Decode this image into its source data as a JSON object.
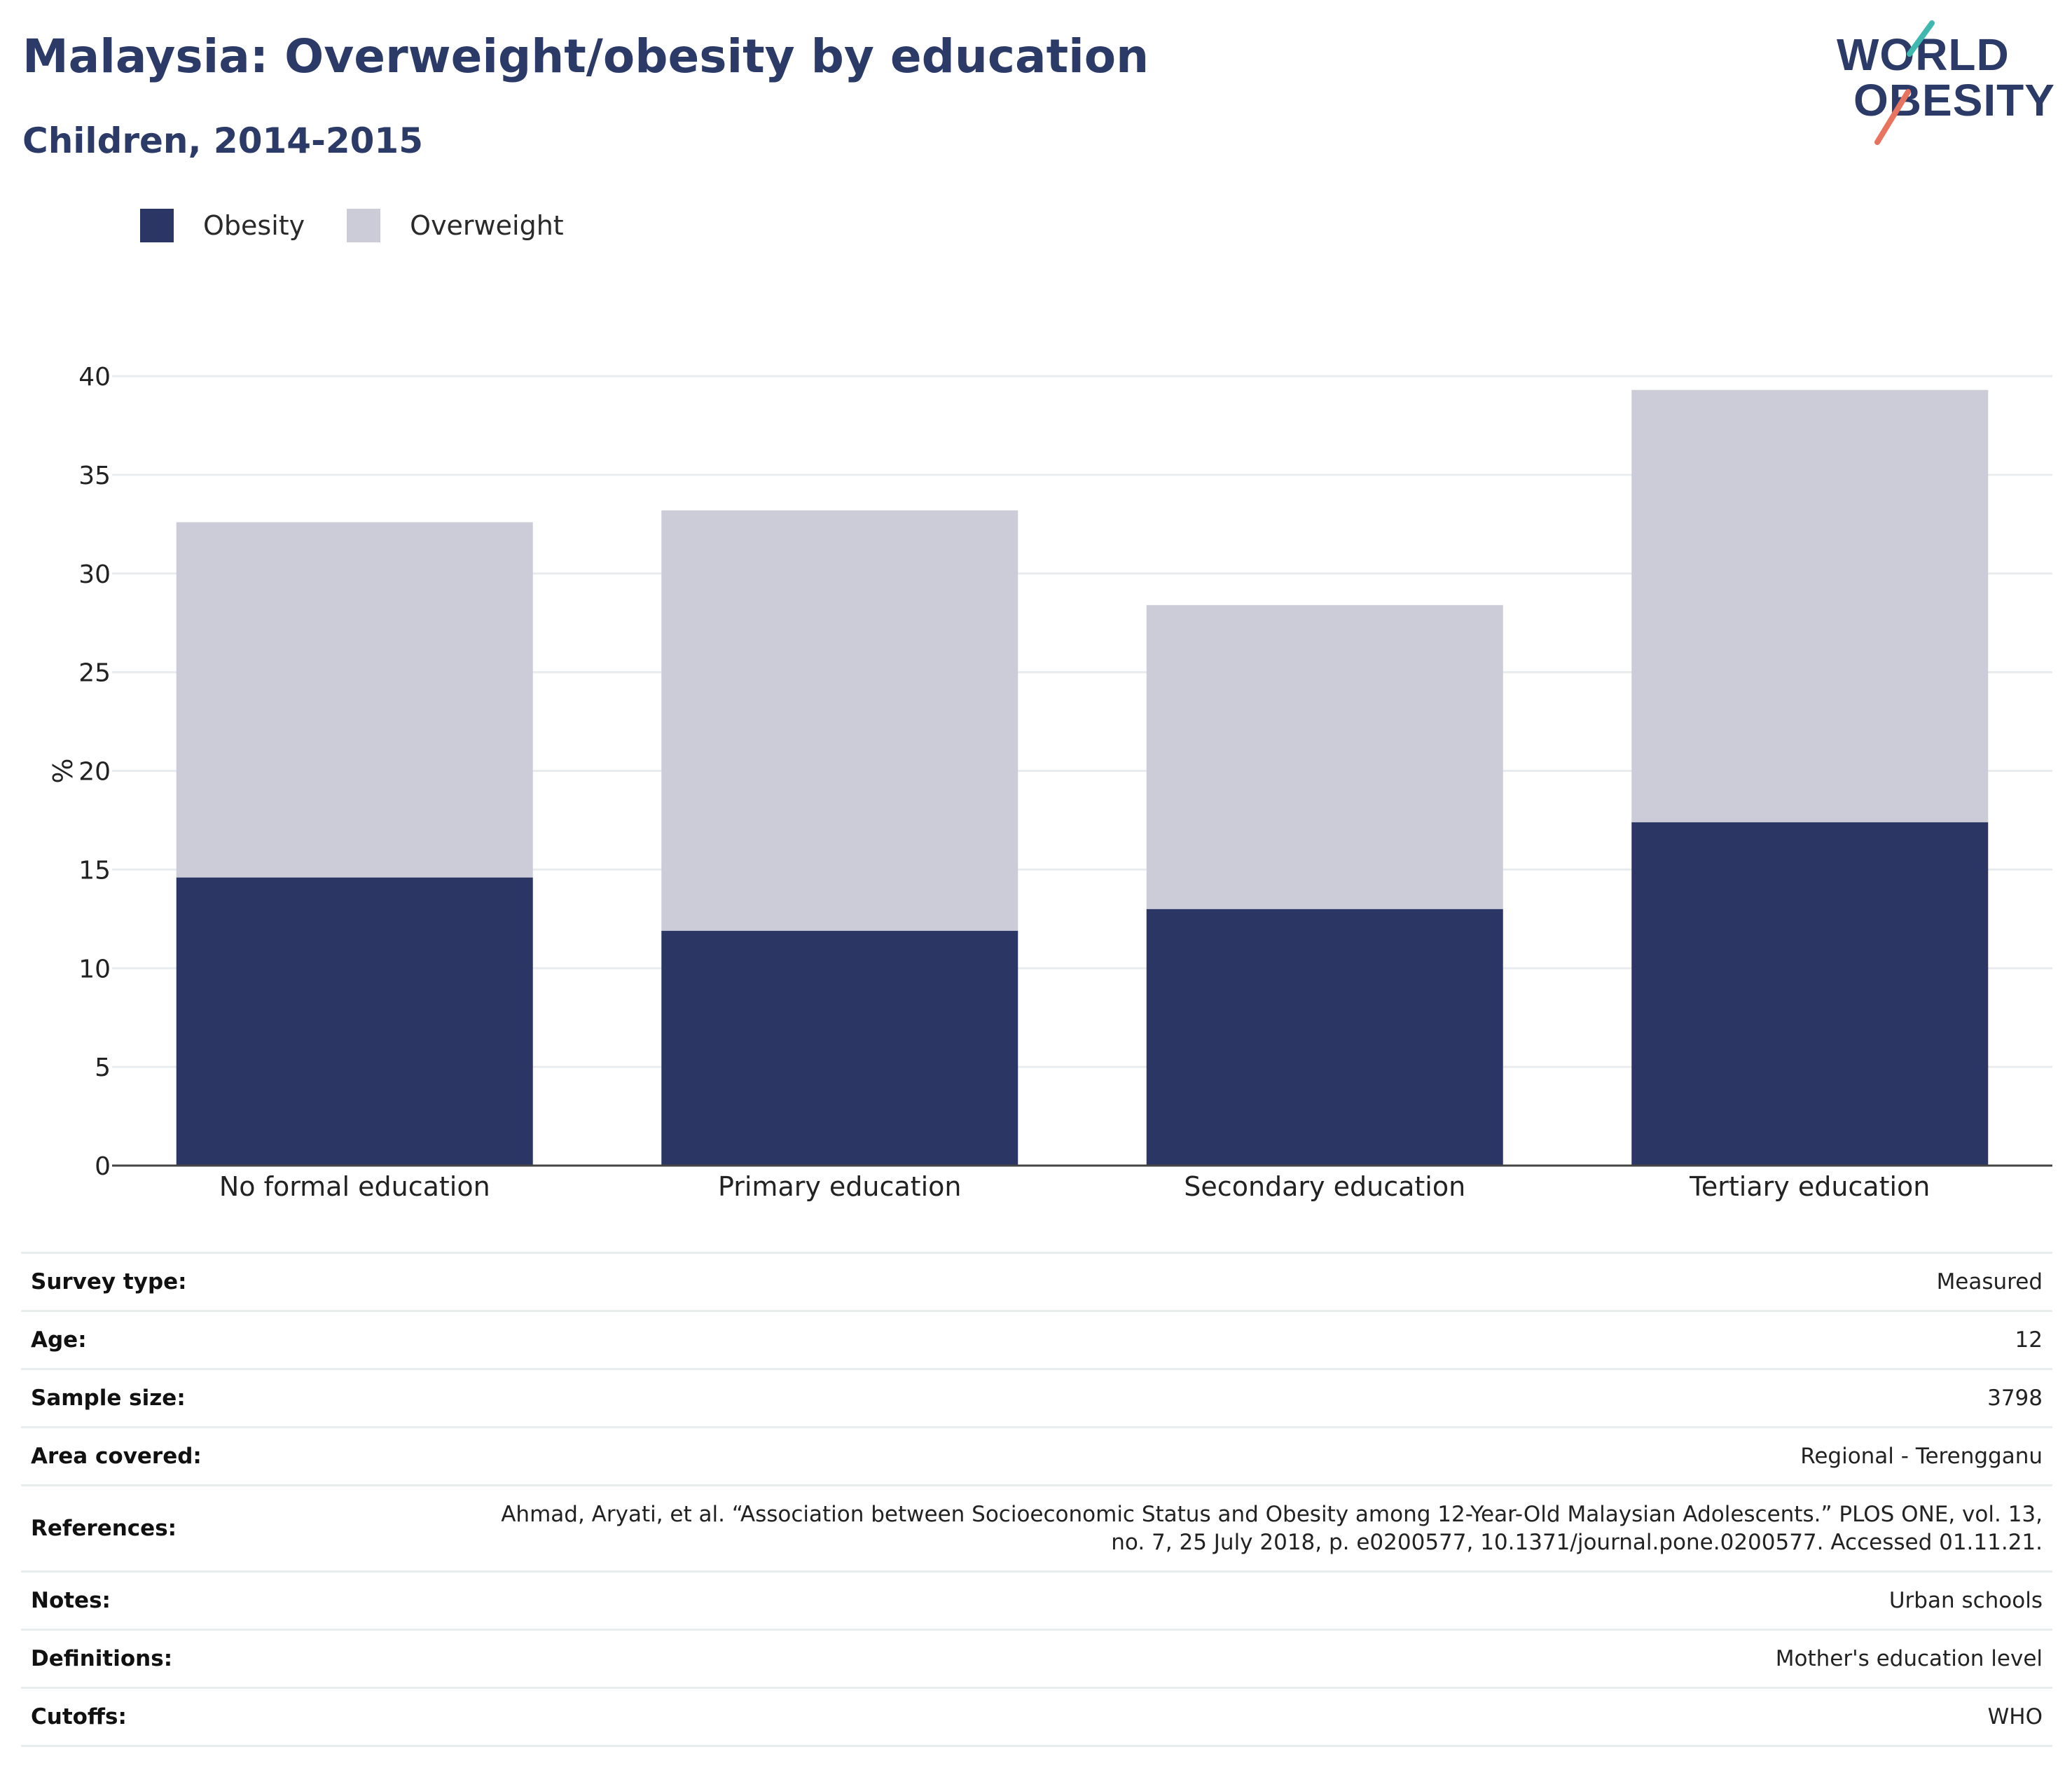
{
  "header": {
    "title": "Malaysia: Overweight/obesity by education",
    "subtitle": "Children, 2014-2015"
  },
  "logo": {
    "line1": "WORLD",
    "line2": "OBESITY"
  },
  "colors": {
    "obesity": "#2b3664",
    "overweight": "#cbccd8",
    "title": "#2b3a67",
    "logo_teal": "#3fb8b0",
    "logo_coral": "#e8735e"
  },
  "legend": [
    {
      "label": "Obesity",
      "color": "#2b3664"
    },
    {
      "label": "Overweight",
      "color": "#cbccd8"
    }
  ],
  "chart_data": {
    "type": "bar",
    "stacked": true,
    "categories": [
      "No formal education",
      "Primary education",
      "Secondary education",
      "Tertiary education"
    ],
    "series": [
      {
        "name": "Obesity",
        "values": [
          14.6,
          11.9,
          13.0,
          17.4
        ]
      },
      {
        "name": "Overweight",
        "values": [
          18.0,
          21.3,
          15.4,
          21.9
        ]
      }
    ],
    "ylabel": "%",
    "ylim": [
      0,
      40
    ],
    "yticks": [
      0,
      5,
      10,
      15,
      20,
      25,
      30,
      35,
      40
    ],
    "grid": true,
    "legend_position": "top-left"
  },
  "meta": [
    {
      "label": "Survey type:",
      "value": "Measured"
    },
    {
      "label": "Age:",
      "value": "12"
    },
    {
      "label": "Sample size:",
      "value": "3798"
    },
    {
      "label": "Area covered:",
      "value": "Regional - Terengganu"
    },
    {
      "label": "References:",
      "value": "Ahmad, Aryati, et al. “Association between Socioeconomic Status and Obesity among 12-Year-Old Malaysian Adolescents.” PLOS ONE, vol. 13, no. 7, 25 July 2018, p. e0200577, 10.1371/journal.pone.0200577. Accessed 01.11.21."
    },
    {
      "label": "Notes:",
      "value": "Urban schools"
    },
    {
      "label": "Definitions:",
      "value": "Mother's education level"
    },
    {
      "label": "Cutoffs:",
      "value": "WHO"
    }
  ]
}
